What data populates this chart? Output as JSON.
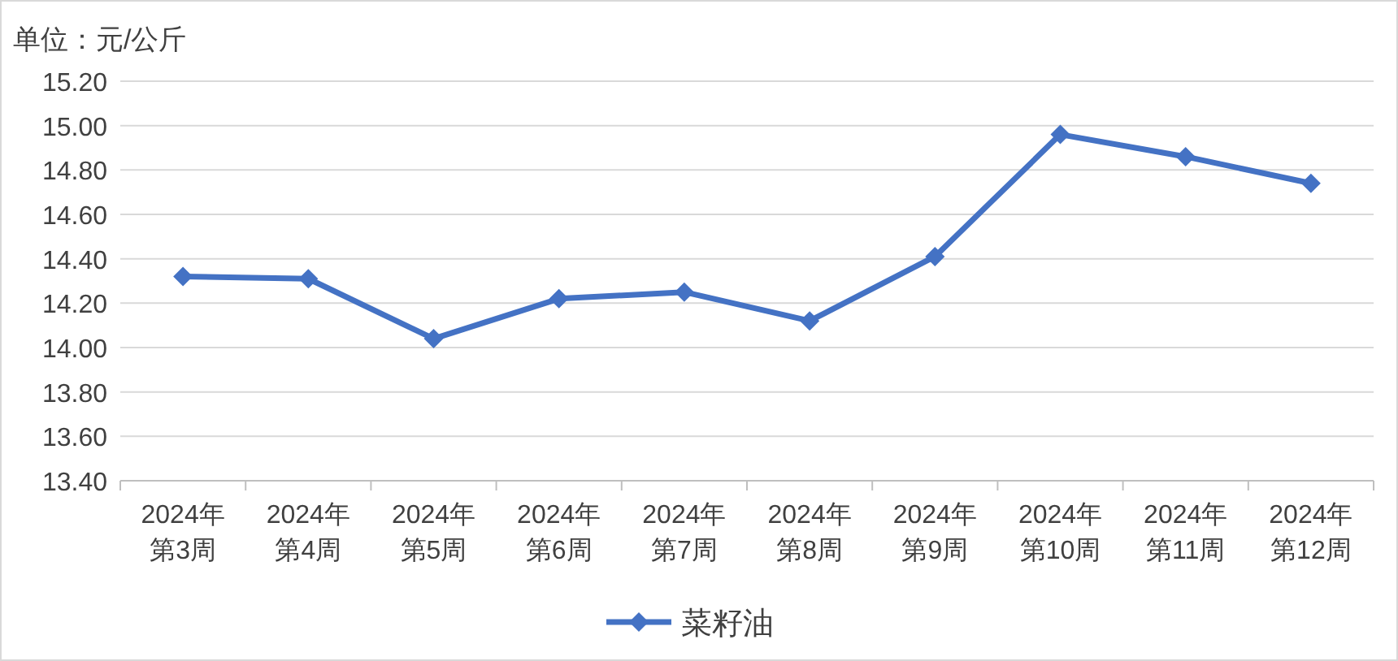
{
  "chart_data": {
    "type": "line",
    "ylabel": "单位：元/公斤",
    "categories": [
      "2024年第3周",
      "2024年第4周",
      "2024年第5周",
      "2024年第6周",
      "2024年第7周",
      "2024年第8周",
      "2024年第9周",
      "2024年第10周",
      "2024年第11周",
      "2024年第12周"
    ],
    "series": [
      {
        "name": "菜籽油",
        "color": "#4472c4",
        "values": [
          14.32,
          14.31,
          14.04,
          14.22,
          14.25,
          14.12,
          14.41,
          14.96,
          14.86,
          14.74
        ]
      }
    ],
    "ylim": [
      13.4,
      15.2
    ],
    "yticks": [
      {
        "value": 13.4,
        "label": "13.40"
      },
      {
        "value": 13.6,
        "label": "13.60"
      },
      {
        "value": 13.8,
        "label": "13.80"
      },
      {
        "value": 14.0,
        "label": "14.00"
      },
      {
        "value": 14.2,
        "label": "14.20"
      },
      {
        "value": 14.4,
        "label": "14.40"
      },
      {
        "value": 14.6,
        "label": "14.60"
      },
      {
        "value": 14.8,
        "label": "14.80"
      },
      {
        "value": 15.0,
        "label": "15.00"
      },
      {
        "value": 15.2,
        "label": "15.20"
      }
    ],
    "grid": "y",
    "legend": "bottom",
    "marker": "diamond",
    "line_style": "solid"
  }
}
